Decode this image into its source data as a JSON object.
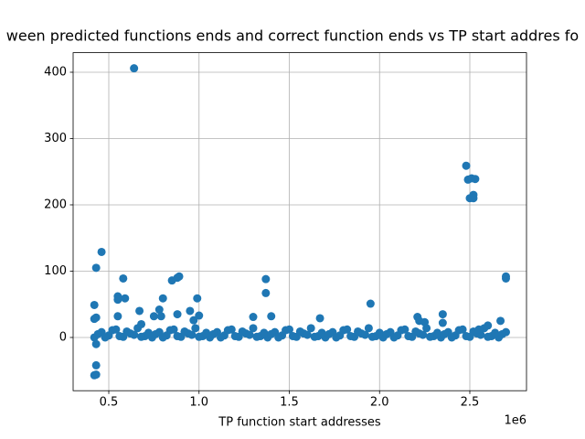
{
  "chart_data": {
    "type": "scatter",
    "title": "ween predicted functions ends and correct function ends vs TP start addres fo",
    "x_label": "TP function start addresses",
    "x_offset_label": "1e6",
    "color": "#1f77b4",
    "grid": true,
    "xlim": [
      0.3025,
      2.814
    ],
    "ylim": [
      -80.3,
      429.5
    ],
    "xticks": [
      0.5,
      {
        "value": 1,
        "label": "1.0"
      },
      1.5,
      {
        "value": 2,
        "label": "2.0"
      },
      2.5
    ],
    "yticks": [
      0,
      100,
      200,
      300,
      400
    ],
    "x": [
      0.42,
      0.46,
      0.5,
      0.54,
      0.58,
      0.62,
      0.66,
      0.7,
      0.74,
      0.78,
      0.82,
      0.86,
      0.9,
      0.94,
      0.98,
      1.02,
      1.06,
      1.1,
      1.14,
      1.18,
      1.22,
      1.26,
      1.3,
      1.34,
      1.38,
      1.42,
      1.46,
      1.5,
      1.54,
      1.58,
      1.62,
      1.66,
      1.7,
      1.74,
      1.78,
      1.82,
      1.86,
      1.9,
      1.94,
      1.98,
      2.02,
      2.06,
      2.1,
      2.14,
      2.18,
      2.22,
      2.26,
      2.3,
      2.34,
      2.38,
      2.42,
      2.46,
      2.5,
      2.54,
      2.58,
      2.62,
      2.66,
      2.7,
      0.44,
      0.48,
      0.52,
      0.56,
      0.6,
      0.64,
      0.68,
      0.72,
      0.76,
      0.8,
      0.84,
      0.88,
      0.92,
      0.96,
      1.0,
      1.04,
      1.08,
      1.12,
      1.16,
      1.2,
      1.24,
      1.28,
      1.32,
      1.36,
      1.4,
      1.44,
      1.48,
      1.52,
      1.56,
      1.6,
      1.64,
      1.68,
      1.72,
      1.76,
      1.8,
      1.84,
      1.88,
      1.92,
      1.96,
      2.0,
      2.04,
      2.08,
      2.12,
      2.16,
      2.2,
      2.24,
      2.28,
      2.32,
      2.36,
      2.4,
      2.44,
      2.48,
      2.52,
      2.56,
      2.6,
      2.64,
      2.68,
      0.43,
      0.42,
      0.43,
      0.42,
      0.43,
      0.43,
      0.43,
      0.42,
      0.46,
      0.55,
      0.55,
      0.58,
      0.59,
      0.55,
      0.64,
      0.67,
      0.68,
      0.75,
      0.78,
      0.79,
      0.8,
      0.85,
      0.88,
      0.89,
      0.88,
      0.95,
      0.97,
      0.99,
      1.0,
      1.3,
      1.37,
      1.37,
      1.4,
      1.67,
      1.95,
      2.21,
      2.22,
      2.25,
      2.35,
      2.35,
      2.48,
      2.49,
      2.5,
      2.51,
      2.52,
      2.52,
      2.53,
      2.55,
      2.6,
      2.67,
      2.7,
      2.7
    ],
    "values": [
      0,
      8,
      3,
      12,
      1,
      6,
      14,
      2,
      0,
      8,
      3,
      12,
      1,
      6,
      14,
      2,
      0,
      8,
      3,
      12,
      1,
      6,
      14,
      2,
      0,
      8,
      3,
      12,
      1,
      6,
      14,
      2,
      0,
      8,
      3,
      12,
      1,
      6,
      14,
      2,
      0,
      8,
      3,
      12,
      1,
      6,
      14,
      2,
      0,
      8,
      3,
      12,
      1,
      6,
      14,
      2,
      0,
      8,
      5,
      0,
      11,
      2,
      9,
      4,
      1,
      7,
      5,
      0,
      11,
      2,
      9,
      4,
      1,
      7,
      5,
      0,
      11,
      2,
      9,
      4,
      1,
      7,
      5,
      0,
      11,
      2,
      9,
      4,
      1,
      7,
      5,
      0,
      11,
      2,
      9,
      4,
      1,
      7,
      5,
      0,
      11,
      2,
      9,
      4,
      1,
      7,
      5,
      0,
      11,
      2,
      9,
      4,
      1,
      7,
      5,
      105,
      49,
      30,
      28,
      -10,
      -42,
      -56,
      -57,
      129,
      62,
      57,
      89,
      59,
      32,
      406,
      40,
      20,
      32,
      42,
      32,
      59,
      86,
      90,
      92,
      35,
      40,
      26,
      59,
      33,
      31,
      67,
      88,
      32,
      29,
      51,
      31,
      25,
      23,
      35,
      22,
      259,
      238,
      210,
      240,
      215,
      210,
      239,
      12,
      18,
      25,
      92,
      89
    ]
  }
}
